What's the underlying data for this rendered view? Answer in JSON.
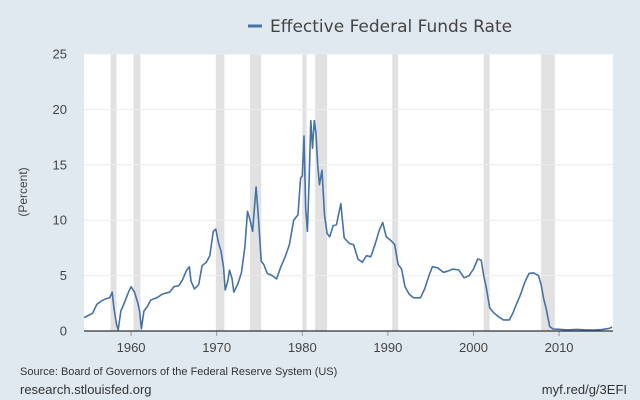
{
  "chart_data": {
    "type": "line",
    "legend": "Effective Federal Funds Rate",
    "legend_position": "top-center",
    "ylabel": "(Percent)",
    "xlim": [
      1954.5,
      2016.3
    ],
    "ylim": [
      0,
      25
    ],
    "yticks": [
      0,
      5,
      10,
      15,
      20,
      25
    ],
    "xticks": [
      1960,
      1970,
      1980,
      1990,
      2000,
      2010
    ],
    "grid": "horizontal",
    "line_color": "#4572a7",
    "recession_color": "#e1e1e1",
    "recessions": [
      [
        1957.6,
        1958.3
      ],
      [
        1960.3,
        1961.1
      ],
      [
        1969.9,
        1970.9
      ],
      [
        1973.9,
        1975.2
      ],
      [
        1980.0,
        1980.5
      ],
      [
        1981.5,
        1982.9
      ],
      [
        1990.5,
        1991.2
      ],
      [
        2001.2,
        2001.9
      ],
      [
        2007.9,
        2009.5
      ]
    ],
    "series": [
      {
        "points": [
          [
            1954.5,
            1.2
          ],
          [
            1955.0,
            1.4
          ],
          [
            1955.5,
            1.6
          ],
          [
            1956.0,
            2.4
          ],
          [
            1956.5,
            2.7
          ],
          [
            1957.0,
            2.9
          ],
          [
            1957.5,
            3.0
          ],
          [
            1957.8,
            3.5
          ],
          [
            1958.0,
            2.0
          ],
          [
            1958.3,
            0.6
          ],
          [
            1958.5,
            0.1
          ],
          [
            1958.8,
            1.8
          ],
          [
            1959.2,
            2.5
          ],
          [
            1959.7,
            3.5
          ],
          [
            1960.0,
            4.0
          ],
          [
            1960.4,
            3.5
          ],
          [
            1960.8,
            2.5
          ],
          [
            1961.0,
            1.8
          ],
          [
            1961.2,
            0.2
          ],
          [
            1961.5,
            1.8
          ],
          [
            1961.9,
            2.2
          ],
          [
            1962.3,
            2.8
          ],
          [
            1963.0,
            3.0
          ],
          [
            1963.6,
            3.3
          ],
          [
            1964.0,
            3.4
          ],
          [
            1964.5,
            3.5
          ],
          [
            1965.0,
            4.0
          ],
          [
            1965.6,
            4.1
          ],
          [
            1966.0,
            4.6
          ],
          [
            1966.5,
            5.5
          ],
          [
            1966.8,
            5.8
          ],
          [
            1967.0,
            4.5
          ],
          [
            1967.4,
            3.8
          ],
          [
            1967.9,
            4.2
          ],
          [
            1968.3,
            5.9
          ],
          [
            1968.8,
            6.2
          ],
          [
            1969.2,
            6.8
          ],
          [
            1969.6,
            9.0
          ],
          [
            1969.9,
            9.2
          ],
          [
            1970.2,
            8.0
          ],
          [
            1970.5,
            7.2
          ],
          [
            1970.8,
            5.8
          ],
          [
            1971.0,
            3.7
          ],
          [
            1971.3,
            4.5
          ],
          [
            1971.5,
            5.5
          ],
          [
            1971.8,
            4.7
          ],
          [
            1972.0,
            3.5
          ],
          [
            1972.5,
            4.3
          ],
          [
            1972.9,
            5.3
          ],
          [
            1973.3,
            7.6
          ],
          [
            1973.6,
            10.8
          ],
          [
            1973.9,
            10.0
          ],
          [
            1974.2,
            9.0
          ],
          [
            1974.6,
            13.0
          ],
          [
            1974.9,
            10.0
          ],
          [
            1975.2,
            6.3
          ],
          [
            1975.5,
            6.0
          ],
          [
            1975.9,
            5.2
          ],
          [
            1976.5,
            5.0
          ],
          [
            1977.0,
            4.7
          ],
          [
            1977.5,
            5.8
          ],
          [
            1978.0,
            6.7
          ],
          [
            1978.5,
            7.8
          ],
          [
            1979.0,
            10.0
          ],
          [
            1979.5,
            10.5
          ],
          [
            1979.8,
            13.8
          ],
          [
            1980.0,
            14.0
          ],
          [
            1980.2,
            17.6
          ],
          [
            1980.4,
            11.0
          ],
          [
            1980.6,
            9.0
          ],
          [
            1980.8,
            13.5
          ],
          [
            1981.0,
            19.0
          ],
          [
            1981.2,
            16.5
          ],
          [
            1981.4,
            19.0
          ],
          [
            1981.6,
            17.8
          ],
          [
            1981.8,
            15.0
          ],
          [
            1982.0,
            13.2
          ],
          [
            1982.3,
            14.5
          ],
          [
            1982.6,
            10.5
          ],
          [
            1982.9,
            8.8
          ],
          [
            1983.2,
            8.5
          ],
          [
            1983.6,
            9.5
          ],
          [
            1984.0,
            9.6
          ],
          [
            1984.5,
            11.5
          ],
          [
            1984.9,
            8.4
          ],
          [
            1985.5,
            7.9
          ],
          [
            1986.0,
            7.8
          ],
          [
            1986.5,
            6.5
          ],
          [
            1987.0,
            6.2
          ],
          [
            1987.5,
            6.8
          ],
          [
            1988.0,
            6.7
          ],
          [
            1988.5,
            7.8
          ],
          [
            1989.0,
            9.1
          ],
          [
            1989.4,
            9.8
          ],
          [
            1989.8,
            8.5
          ],
          [
            1990.3,
            8.2
          ],
          [
            1990.8,
            7.8
          ],
          [
            1991.2,
            6.0
          ],
          [
            1991.6,
            5.6
          ],
          [
            1992.0,
            4.0
          ],
          [
            1992.5,
            3.3
          ],
          [
            1993.0,
            3.0
          ],
          [
            1993.8,
            3.0
          ],
          [
            1994.3,
            3.8
          ],
          [
            1994.8,
            5.0
          ],
          [
            1995.2,
            5.8
          ],
          [
            1995.8,
            5.7
          ],
          [
            1996.5,
            5.3
          ],
          [
            1997.0,
            5.4
          ],
          [
            1997.6,
            5.6
          ],
          [
            1998.3,
            5.5
          ],
          [
            1998.9,
            4.8
          ],
          [
            1999.5,
            5.0
          ],
          [
            2000.0,
            5.6
          ],
          [
            2000.5,
            6.5
          ],
          [
            2000.9,
            6.4
          ],
          [
            2001.2,
            5.0
          ],
          [
            2001.5,
            3.9
          ],
          [
            2001.9,
            2.1
          ],
          [
            2002.3,
            1.7
          ],
          [
            2002.9,
            1.3
          ],
          [
            2003.5,
            1.0
          ],
          [
            2004.2,
            1.0
          ],
          [
            2004.6,
            1.6
          ],
          [
            2005.0,
            2.4
          ],
          [
            2005.5,
            3.3
          ],
          [
            2006.0,
            4.4
          ],
          [
            2006.5,
            5.2
          ],
          [
            2007.0,
            5.25
          ],
          [
            2007.6,
            5.0
          ],
          [
            2007.9,
            4.2
          ],
          [
            2008.2,
            2.9
          ],
          [
            2008.5,
            2.0
          ],
          [
            2008.9,
            0.4
          ],
          [
            2009.3,
            0.18
          ],
          [
            2010.0,
            0.15
          ],
          [
            2011.0,
            0.1
          ],
          [
            2012.0,
            0.14
          ],
          [
            2013.0,
            0.11
          ],
          [
            2014.0,
            0.09
          ],
          [
            2015.0,
            0.13
          ],
          [
            2015.9,
            0.24
          ],
          [
            2016.2,
            0.36
          ]
        ]
      }
    ]
  },
  "footer": {
    "source": "Source: Board of Governors of the Federal Reserve System (US)",
    "site": "research.stlouisfed.org",
    "short_url": "myf.red/g/3EFI"
  }
}
